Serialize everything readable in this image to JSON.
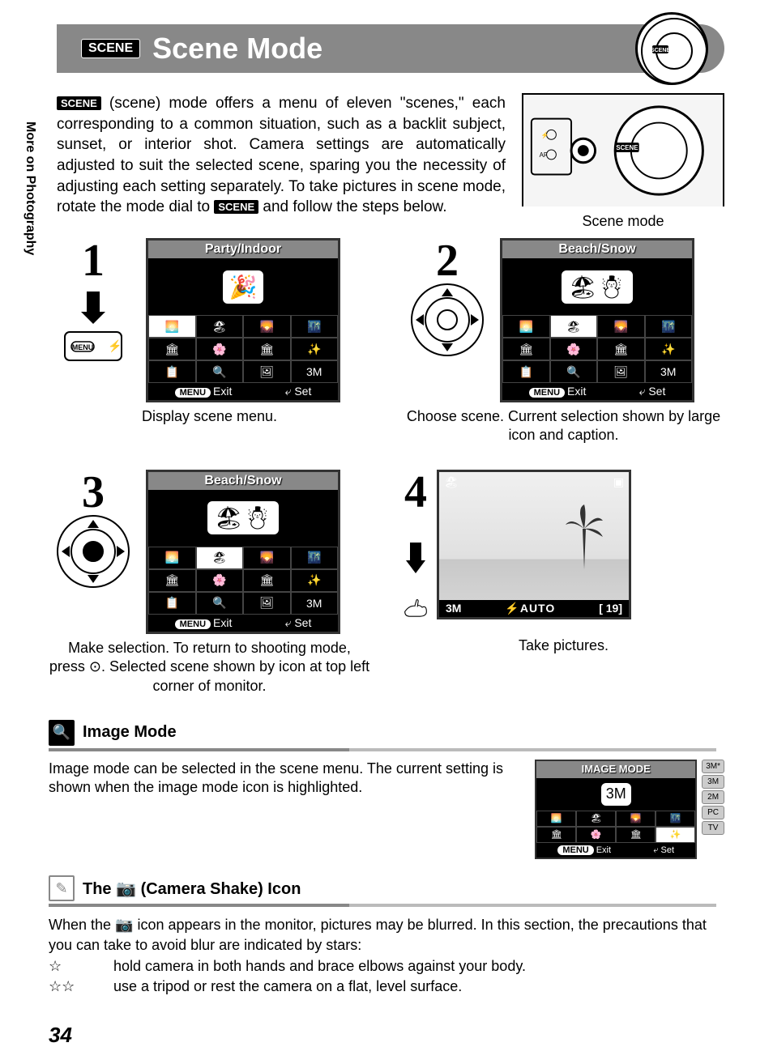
{
  "sidebar_label": "More on Photography",
  "title": {
    "badge": "SCENE",
    "text": "Scene Mode"
  },
  "intro_text_parts": {
    "before_badge": "",
    "badge": "SCENE",
    "middle": " (scene) mode offers a menu of eleven \"scenes,\" each corresponding to a common situation, such as a backlit subject, sunset, or interior shot. Camera settings are automatically adjusted to suit the selected scene, sparing you the necessity of adjusting each setting separately. To take pictures in scene mode, rotate the mode dial to ",
    "badge2": "SCENE",
    "after": " and follow the steps below."
  },
  "camera_caption": "Scene mode",
  "steps": {
    "s1": {
      "num": "1",
      "lcd_title": "Party/Indoor",
      "caption": "Display scene menu.",
      "foot_exit": "Exit",
      "foot_set": "Set"
    },
    "s2": {
      "num": "2",
      "lcd_title": "Beach/Snow",
      "caption": "Choose scene. Current selection shown by large icon and caption.",
      "foot_exit": "Exit",
      "foot_set": "Set"
    },
    "s3": {
      "num": "3",
      "lcd_title": "Beach/Snow",
      "caption": "Make selection. To return to shooting mode, press ⊙. Selected scene shown by icon at top left corner of monitor.",
      "foot_exit": "Exit",
      "foot_set": "Set"
    },
    "s4": {
      "num": "4",
      "caption": "Take pictures.",
      "bottom_left": "3M",
      "bottom_mid": "⚡AUTO",
      "bottom_right": "[  19]"
    }
  },
  "lcd_icons": [
    "🌅",
    "🏖",
    "🌄",
    "🌃",
    "🏛",
    "🌸",
    "🏛",
    "✨",
    "📋",
    "🔍",
    "🖼",
    "3M"
  ],
  "image_mode": {
    "title": "Image Mode",
    "body": "Image mode can be selected in the scene menu. The current setting is shown when the image mode icon is highlighted.",
    "lcd_title": "IMAGE MODE",
    "big": "3M",
    "side_options": [
      "3M*",
      "3M",
      "2M",
      "PC",
      "TV"
    ],
    "foot_exit": "Exit",
    "foot_set": "Set"
  },
  "shake": {
    "title": "The 📷 (Camera Shake) Icon",
    "intro": "When the 📷 icon appears in the monitor, pictures may be blurred. In this section, the precautions that you can take to avoid blur are indicated by stars:",
    "row1_stars": "☆",
    "row1_text": "hold camera in both hands and brace elbows against your body.",
    "row2_stars": "☆☆",
    "row2_text": "use a tripod or rest the camera on a flat, level surface."
  },
  "page_number": "34"
}
